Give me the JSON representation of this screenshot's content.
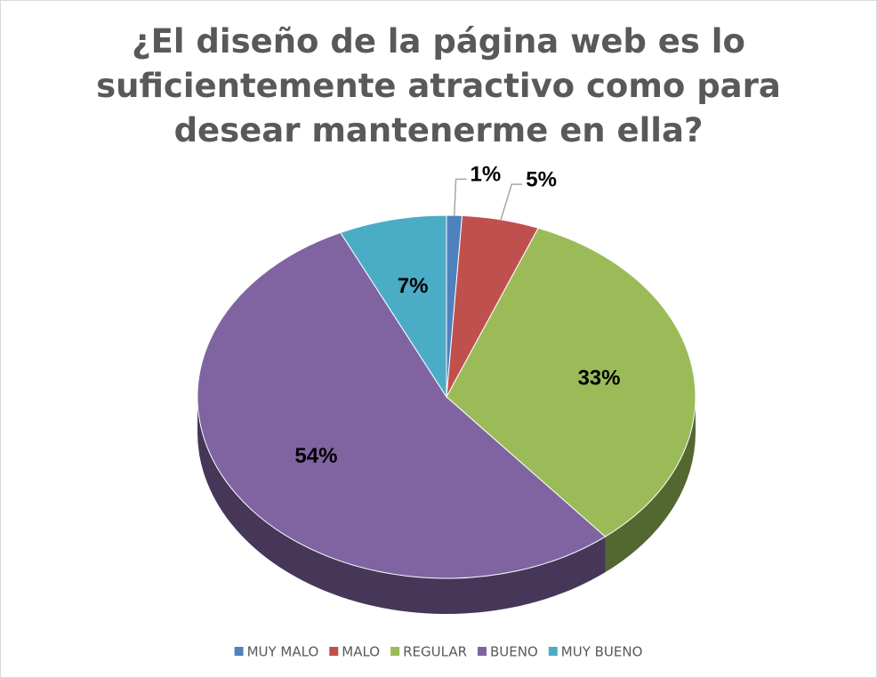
{
  "chart_data": {
    "type": "pie",
    "title": "¿El diseño de la página web es lo suficientemente atractivo como para desear mantenerme en ella?",
    "categories": [
      "MUY MALO",
      "MALO",
      "REGULAR",
      "BUENO",
      "MUY BUENO"
    ],
    "values": [
      1,
      5,
      33,
      54,
      7
    ],
    "value_labels": [
      "1%",
      "5%",
      "33%",
      "54%",
      "7%"
    ],
    "colors": [
      "#4f81bd",
      "#c0504d",
      "#9bbb59",
      "#8064a2",
      "#4bacc6"
    ],
    "legend": "bottom"
  }
}
